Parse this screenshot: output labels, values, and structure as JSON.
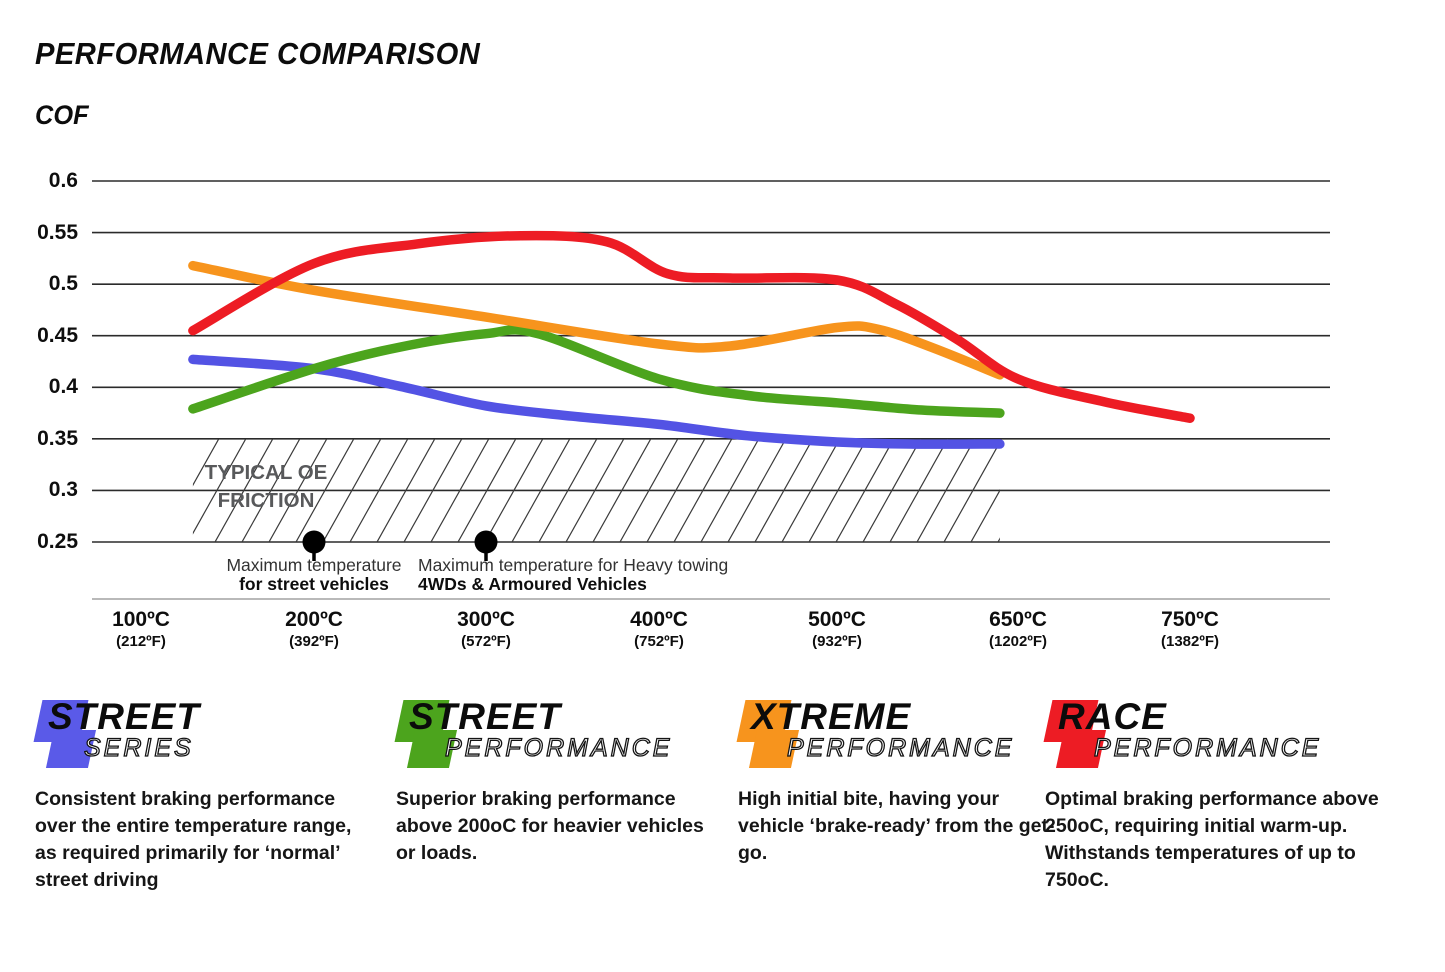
{
  "title": "PERFORMANCE COMPARISON",
  "axis_title": "COF",
  "chart_data": {
    "type": "line",
    "title": "Performance Comparison",
    "ylabel": "COF",
    "xlabel": "",
    "ylim": [
      0.25,
      0.6
    ],
    "grid": "horizontal",
    "legend_position": "bottom",
    "y_ticks": [
      0.6,
      0.55,
      0.5,
      0.45,
      0.4,
      0.35,
      0.3,
      0.25
    ],
    "x_ticks": [
      {
        "temp": 100,
        "label": "100ºC",
        "sublabel": "(212ºF)"
      },
      {
        "temp": 200,
        "label": "200ºC",
        "sublabel": "(392ºF)"
      },
      {
        "temp": 300,
        "label": "300ºC",
        "sublabel": "(572ºF)"
      },
      {
        "temp": 400,
        "label": "400ºC",
        "sublabel": "(752ºF)"
      },
      {
        "temp": 500,
        "label": "500ºC",
        "sublabel": "(932ºF)"
      },
      {
        "temp": 650,
        "label": "650ºC",
        "sublabel": "(1202ºF)"
      },
      {
        "temp": 750,
        "label": "750ºC",
        "sublabel": "(1382ºF)"
      }
    ],
    "series": [
      {
        "name": "Street Series",
        "color": "#5353e4",
        "points": [
          [
            130,
            0.427
          ],
          [
            200,
            0.418
          ],
          [
            250,
            0.401
          ],
          [
            300,
            0.382
          ],
          [
            350,
            0.372
          ],
          [
            400,
            0.364
          ],
          [
            450,
            0.353
          ],
          [
            500,
            0.347
          ],
          [
            560,
            0.345
          ],
          [
            635,
            0.345
          ]
        ]
      },
      {
        "name": "Street Performance",
        "color": "#4ca41d",
        "points": [
          [
            130,
            0.379
          ],
          [
            200,
            0.418
          ],
          [
            250,
            0.439
          ],
          [
            300,
            0.452
          ],
          [
            330,
            0.452
          ],
          [
            400,
            0.408
          ],
          [
            450,
            0.392
          ],
          [
            500,
            0.385
          ],
          [
            570,
            0.378
          ],
          [
            635,
            0.375
          ]
        ]
      },
      {
        "name": "Xtreme Performance",
        "color": "#f7941d",
        "points": [
          [
            130,
            0.518
          ],
          [
            200,
            0.494
          ],
          [
            300,
            0.468
          ],
          [
            400,
            0.442
          ],
          [
            440,
            0.44
          ],
          [
            500,
            0.458
          ],
          [
            535,
            0.456
          ],
          [
            580,
            0.438
          ],
          [
            635,
            0.412
          ]
        ]
      },
      {
        "name": "Race Performance",
        "color": "#ed1c24",
        "points": [
          [
            130,
            0.455
          ],
          [
            200,
            0.52
          ],
          [
            260,
            0.539
          ],
          [
            320,
            0.547
          ],
          [
            370,
            0.541
          ],
          [
            405,
            0.51
          ],
          [
            440,
            0.506
          ],
          [
            500,
            0.504
          ],
          [
            550,
            0.48
          ],
          [
            600,
            0.446
          ],
          [
            650,
            0.408
          ],
          [
            700,
            0.386
          ],
          [
            750,
            0.37
          ]
        ]
      }
    ],
    "oe_band": {
      "label_line1": "TYPICAL OE",
      "label_line2": "FRICTION",
      "y_range": [
        0.25,
        0.35
      ],
      "temp_range": [
        130,
        635
      ],
      "pattern": "diagonal-hatch"
    },
    "annotations": [
      {
        "temp": 200,
        "line1": "Maximum temperature",
        "line2": "for street vehicles",
        "align": "center"
      },
      {
        "temp": 300,
        "line1": "Maximum temperature for Heavy towing",
        "line2": "4WDs & Armoured Vehicles",
        "align": "left"
      }
    ]
  },
  "legend": [
    {
      "brand_top": "STREET",
      "brand_bottom": "SERIES",
      "color": "#5a5ae8",
      "description": "Consistent braking performance over the entire temperature range, as required primarily for ‘normal’ street driving"
    },
    {
      "brand_top": "STREET",
      "brand_bottom": "PERFORMANCE",
      "color": "#4ca41d",
      "description": "Superior braking performance above 200oC for heavier vehicles or loads."
    },
    {
      "brand_top": "XTREME",
      "brand_bottom": "PERFORMANCE",
      "color": "#f7941d",
      "description": "High initial bite, having your vehicle ‘brake-ready’ from the get-go."
    },
    {
      "brand_top": "RACE",
      "brand_bottom": "PERFORMANCE",
      "color": "#ed1c24",
      "description": "Optimal braking performance above 250oC, requiring initial warm-up. Withstands temperatures of up to 750oC."
    }
  ]
}
